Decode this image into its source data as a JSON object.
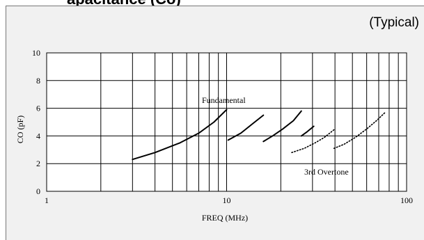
{
  "page": {
    "partial_title": "apacitance (Co)",
    "note": "(Typical)"
  },
  "chart_data": {
    "type": "line",
    "title": "",
    "xlabel": "FREQ (MHz)",
    "ylabel": "CO (pF)",
    "xscale": "log",
    "xlim": [
      1,
      100
    ],
    "ylim": [
      0,
      10
    ],
    "xticks": [
      "1",
      "10",
      "100"
    ],
    "yticks": [
      "0",
      "2",
      "4",
      "6",
      "8",
      "10"
    ],
    "grid": true,
    "annotations": [
      "Fundamental",
      "3rd Overtone"
    ],
    "series": [
      {
        "style": "solid",
        "x": [
          3.0,
          4.0,
          5.5,
          7.0,
          8.5,
          10.0
        ],
        "y": [
          2.3,
          2.8,
          3.5,
          4.2,
          5.0,
          5.9
        ]
      },
      {
        "style": "solid",
        "x": [
          10.2,
          12.0,
          14.0,
          16.0
        ],
        "y": [
          3.7,
          4.2,
          4.9,
          5.5
        ]
      },
      {
        "style": "solid",
        "x": [
          16.0,
          18.0,
          20.5,
          23.5,
          26.0
        ],
        "y": [
          3.6,
          4.0,
          4.5,
          5.1,
          5.8
        ]
      },
      {
        "style": "solid",
        "x": [
          26.0,
          28.0,
          30.5
        ],
        "y": [
          4.0,
          4.3,
          4.7
        ]
      },
      {
        "style": "dotted",
        "x": [
          23.0,
          27.0,
          31.0,
          35.0,
          40.0
        ],
        "y": [
          2.8,
          3.1,
          3.5,
          3.9,
          4.5
        ]
      },
      {
        "style": "dotted",
        "x": [
          39.5,
          45.0,
          52.0,
          60.0,
          68.0,
          76.0
        ],
        "y": [
          3.1,
          3.4,
          3.9,
          4.5,
          5.1,
          5.7
        ]
      }
    ]
  }
}
